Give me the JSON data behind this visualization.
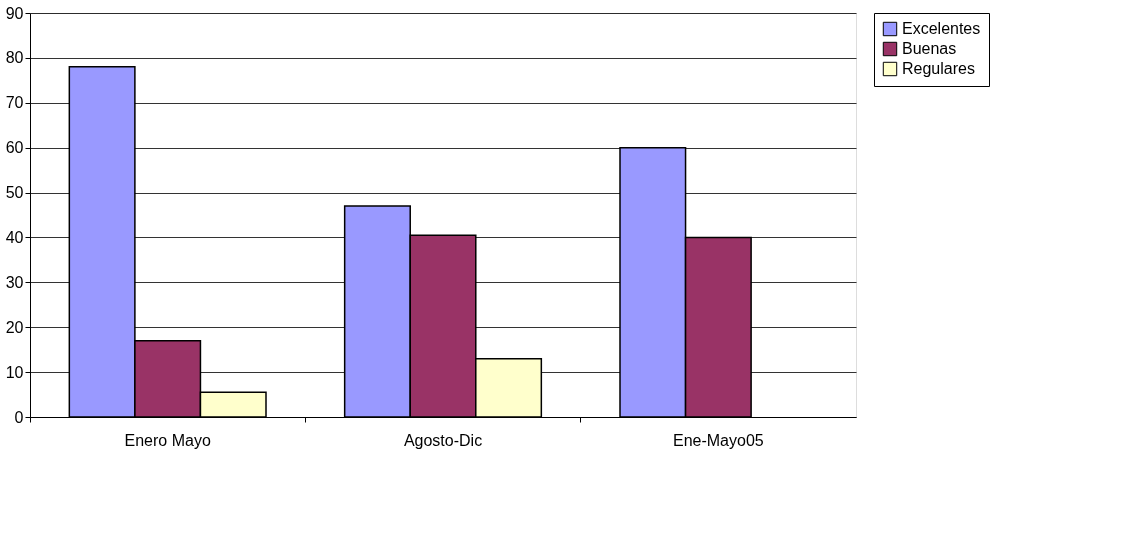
{
  "chart_data": {
    "type": "bar",
    "categories": [
      "Enero Mayo",
      "Agosto-Dic",
      "Ene-Mayo05"
    ],
    "series": [
      {
        "name": "Excelentes",
        "color": "#9999ff",
        "values": [
          78,
          47,
          60
        ]
      },
      {
        "name": "Buenas",
        "color": "#993366",
        "values": [
          17,
          40.5,
          40
        ]
      },
      {
        "name": "Regulares",
        "color": "#ffffcc",
        "values": [
          5.5,
          13,
          null
        ]
      }
    ],
    "ylim": [
      0,
      90
    ],
    "yticks": [
      0,
      10,
      20,
      30,
      40,
      50,
      60,
      70,
      80,
      90
    ],
    "grid": "y",
    "legend": "right"
  }
}
